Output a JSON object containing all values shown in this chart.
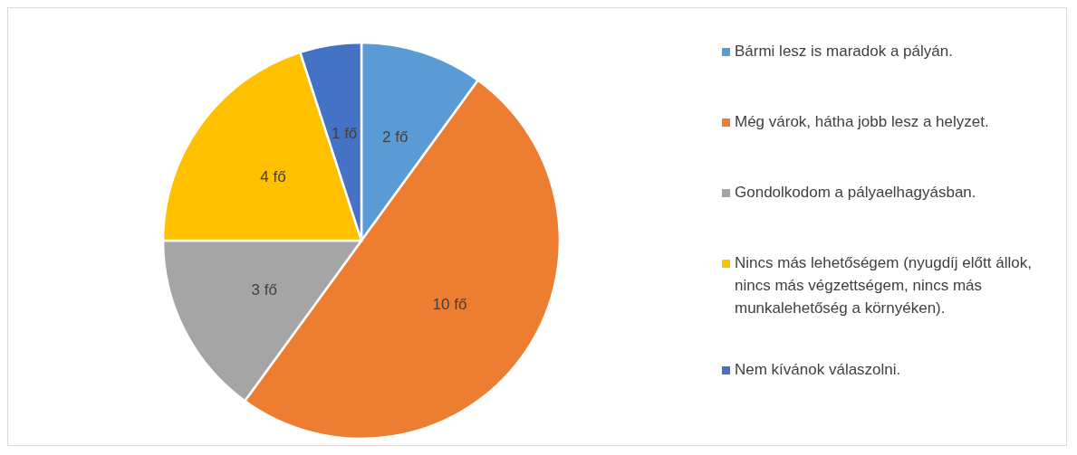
{
  "chart_data": {
    "type": "pie",
    "categories": [
      "Bármi lesz is maradok a pályán.",
      "Még várok, hátha jobb lesz a helyzet.",
      "Gondolkodom a pályaelhagyásban.",
      "Nincs más lehetőségem (nyugdíj előtt állok, nincs más végzettségem, nincs más munkalehetőség a környéken).",
      "Nem kívánok válaszolni."
    ],
    "values": [
      2,
      10,
      3,
      4,
      1
    ],
    "value_labels": [
      "2 fő",
      "10 fő",
      "3 fő",
      "4 fő",
      "1 fő"
    ],
    "colors": [
      "#5b9bd5",
      "#ed7d31",
      "#a5a5a5",
      "#ffc000",
      "#4472c4"
    ],
    "legend": "right"
  }
}
